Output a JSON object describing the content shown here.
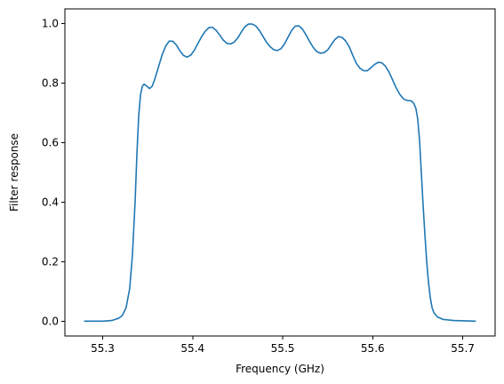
{
  "chart_data": {
    "type": "line",
    "title": "",
    "xlabel": "Frequency (GHz)",
    "ylabel": "Filter response",
    "xlim": [
      55.258,
      55.736
    ],
    "ylim": [
      -0.05,
      1.05
    ],
    "xticks": [
      55.3,
      55.4,
      55.5,
      55.6,
      55.7
    ],
    "xtick_labels": [
      "55.3",
      "55.4",
      "55.5",
      "55.6",
      "55.7"
    ],
    "yticks": [
      0.0,
      0.2,
      0.4,
      0.6,
      0.8,
      1.0
    ],
    "ytick_labels": [
      "0.0",
      "0.2",
      "0.4",
      "0.6",
      "0.8",
      "1.0"
    ],
    "grid": false,
    "legend": "none",
    "series": [
      {
        "color": "#1f77b4",
        "points": [
          [
            55.28,
            0.0
          ],
          [
            55.3,
            0.0
          ],
          [
            55.31,
            0.002
          ],
          [
            55.318,
            0.01
          ],
          [
            55.322,
            0.02
          ],
          [
            55.326,
            0.045
          ],
          [
            55.33,
            0.11
          ],
          [
            55.333,
            0.22
          ],
          [
            55.336,
            0.4
          ],
          [
            55.338,
            0.56
          ],
          [
            55.34,
            0.69
          ],
          [
            55.342,
            0.76
          ],
          [
            55.344,
            0.79
          ],
          [
            55.346,
            0.797
          ],
          [
            55.349,
            0.79
          ],
          [
            55.352,
            0.782
          ],
          [
            55.355,
            0.79
          ],
          [
            55.358,
            0.815
          ],
          [
            55.362,
            0.855
          ],
          [
            55.366,
            0.895
          ],
          [
            55.37,
            0.925
          ],
          [
            55.374,
            0.942
          ],
          [
            55.378,
            0.941
          ],
          [
            55.382,
            0.928
          ],
          [
            55.386,
            0.908
          ],
          [
            55.39,
            0.893
          ],
          [
            55.394,
            0.888
          ],
          [
            55.398,
            0.895
          ],
          [
            55.402,
            0.912
          ],
          [
            55.406,
            0.935
          ],
          [
            55.41,
            0.957
          ],
          [
            55.414,
            0.975
          ],
          [
            55.418,
            0.987
          ],
          [
            55.422,
            0.988
          ],
          [
            55.426,
            0.978
          ],
          [
            55.43,
            0.962
          ],
          [
            55.434,
            0.945
          ],
          [
            55.438,
            0.934
          ],
          [
            55.442,
            0.932
          ],
          [
            55.446,
            0.938
          ],
          [
            55.45,
            0.952
          ],
          [
            55.454,
            0.972
          ],
          [
            55.458,
            0.99
          ],
          [
            55.462,
            0.999
          ],
          [
            55.466,
            0.999
          ],
          [
            55.47,
            0.993
          ],
          [
            55.474,
            0.978
          ],
          [
            55.478,
            0.958
          ],
          [
            55.482,
            0.938
          ],
          [
            55.486,
            0.923
          ],
          [
            55.49,
            0.913
          ],
          [
            55.494,
            0.91
          ],
          [
            55.498,
            0.916
          ],
          [
            55.502,
            0.932
          ],
          [
            55.506,
            0.955
          ],
          [
            55.51,
            0.978
          ],
          [
            55.514,
            0.992
          ],
          [
            55.518,
            0.993
          ],
          [
            55.522,
            0.982
          ],
          [
            55.526,
            0.962
          ],
          [
            55.53,
            0.94
          ],
          [
            55.534,
            0.92
          ],
          [
            55.538,
            0.906
          ],
          [
            55.542,
            0.901
          ],
          [
            55.546,
            0.903
          ],
          [
            55.55,
            0.912
          ],
          [
            55.554,
            0.93
          ],
          [
            55.558,
            0.947
          ],
          [
            55.562,
            0.957
          ],
          [
            55.566,
            0.954
          ],
          [
            55.57,
            0.942
          ],
          [
            55.574,
            0.922
          ],
          [
            55.578,
            0.893
          ],
          [
            55.582,
            0.866
          ],
          [
            55.586,
            0.85
          ],
          [
            55.59,
            0.842
          ],
          [
            55.594,
            0.842
          ],
          [
            55.598,
            0.852
          ],
          [
            55.602,
            0.863
          ],
          [
            55.606,
            0.87
          ],
          [
            55.61,
            0.869
          ],
          [
            55.614,
            0.858
          ],
          [
            55.618,
            0.838
          ],
          [
            55.622,
            0.812
          ],
          [
            55.626,
            0.785
          ],
          [
            55.63,
            0.763
          ],
          [
            55.634,
            0.748
          ],
          [
            55.638,
            0.742
          ],
          [
            55.642,
            0.741
          ],
          [
            55.644,
            0.738
          ],
          [
            55.646,
            0.73
          ],
          [
            55.648,
            0.715
          ],
          [
            55.65,
            0.68
          ],
          [
            55.652,
            0.61
          ],
          [
            55.654,
            0.5
          ],
          [
            55.656,
            0.39
          ],
          [
            55.658,
            0.29
          ],
          [
            55.66,
            0.2
          ],
          [
            55.662,
            0.13
          ],
          [
            55.664,
            0.078
          ],
          [
            55.666,
            0.045
          ],
          [
            55.668,
            0.028
          ],
          [
            55.672,
            0.014
          ],
          [
            55.678,
            0.006
          ],
          [
            55.69,
            0.002
          ],
          [
            55.714,
            0.0
          ]
        ]
      }
    ]
  }
}
